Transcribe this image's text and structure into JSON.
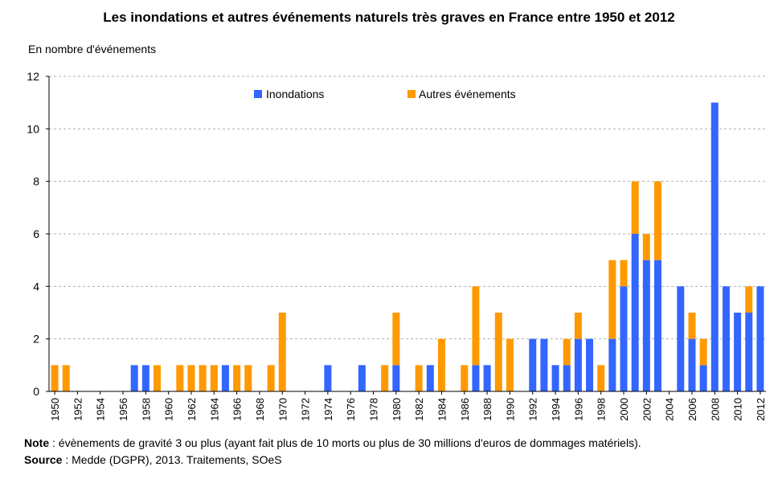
{
  "title": "Les inondations et autres événements naturels très graves en France entre 1950 et 2012",
  "unit_label": "En nombre d'événements",
  "note_label": "Note",
  "note_text": " : évènements de gravité 3 ou plus (ayant fait plus de 10 morts ou plus de 30 millions d'euros de dommages matériels).",
  "source_label": "Source",
  "source_text": " : Medde (DGPR), 2013. Traitements, SOeS",
  "colors": {
    "inondations": "#3366ff",
    "autres": "#ff9900",
    "grid": "#b0b0b0"
  },
  "chart_data": {
    "type": "bar",
    "stacked": true,
    "title": "Les inondations et autres événements naturels très graves en France entre 1950 et 2012",
    "ylabel": "En nombre d'événements",
    "xlabel": "",
    "ylim": [
      0,
      12
    ],
    "yticks": [
      0,
      2,
      4,
      6,
      8,
      10,
      12
    ],
    "grid": true,
    "legend_position": "top-center",
    "categories": [
      "1950",
      "1951",
      "1952",
      "1953",
      "1954",
      "1955",
      "1956",
      "1957",
      "1958",
      "1959",
      "1960",
      "1961",
      "1962",
      "1963",
      "1964",
      "1965",
      "1966",
      "1967",
      "1968",
      "1969",
      "1970",
      "1971",
      "1972",
      "1973",
      "1974",
      "1975",
      "1976",
      "1977",
      "1978",
      "1979",
      "1980",
      "1981",
      "1982",
      "1983",
      "1984",
      "1985",
      "1986",
      "1987",
      "1988",
      "1989",
      "1990",
      "1991",
      "1992",
      "1993",
      "1994",
      "1995",
      "1996",
      "1997",
      "1998",
      "1999",
      "2000",
      "2001",
      "2002",
      "2003",
      "2004",
      "2005",
      "2006",
      "2007",
      "2008",
      "2009",
      "2010",
      "2011",
      "2012"
    ],
    "tick_labels": [
      "1950",
      "1952",
      "1954",
      "1956",
      "1958",
      "1960",
      "1962",
      "1964",
      "1966",
      "1968",
      "1970",
      "1972",
      "1974",
      "1976",
      "1978",
      "1980",
      "1982",
      "1984",
      "1986",
      "1988",
      "1990",
      "1992",
      "1994",
      "1996",
      "1998",
      "2000",
      "2002",
      "2004",
      "2006",
      "2008",
      "2010",
      "2012"
    ],
    "series": [
      {
        "name": "Inondations",
        "values": [
          0,
          0,
          0,
          0,
          0,
          0,
          0,
          1,
          1,
          0,
          0,
          0,
          0,
          0,
          0,
          1,
          0,
          0,
          0,
          0,
          0,
          0,
          0,
          0,
          1,
          0,
          0,
          1,
          0,
          0,
          1,
          0,
          0,
          1,
          0,
          0,
          0,
          1,
          1,
          0,
          0,
          0,
          2,
          2,
          1,
          1,
          2,
          2,
          0,
          2,
          4,
          6,
          5,
          5,
          0,
          4,
          2,
          1,
          11,
          4,
          3,
          3,
          4
        ]
      },
      {
        "name": "Autres événements",
        "values": [
          1,
          1,
          0,
          0,
          0,
          0,
          0,
          0,
          0,
          1,
          0,
          1,
          1,
          1,
          1,
          0,
          1,
          1,
          0,
          1,
          3,
          0,
          0,
          0,
          0,
          0,
          0,
          0,
          0,
          1,
          2,
          0,
          1,
          0,
          2,
          0,
          1,
          3,
          0,
          3,
          2,
          0,
          0,
          0,
          0,
          1,
          1,
          0,
          1,
          3,
          1,
          2,
          1,
          3,
          0,
          0,
          1,
          1,
          0,
          0,
          0,
          1,
          0
        ]
      }
    ]
  }
}
